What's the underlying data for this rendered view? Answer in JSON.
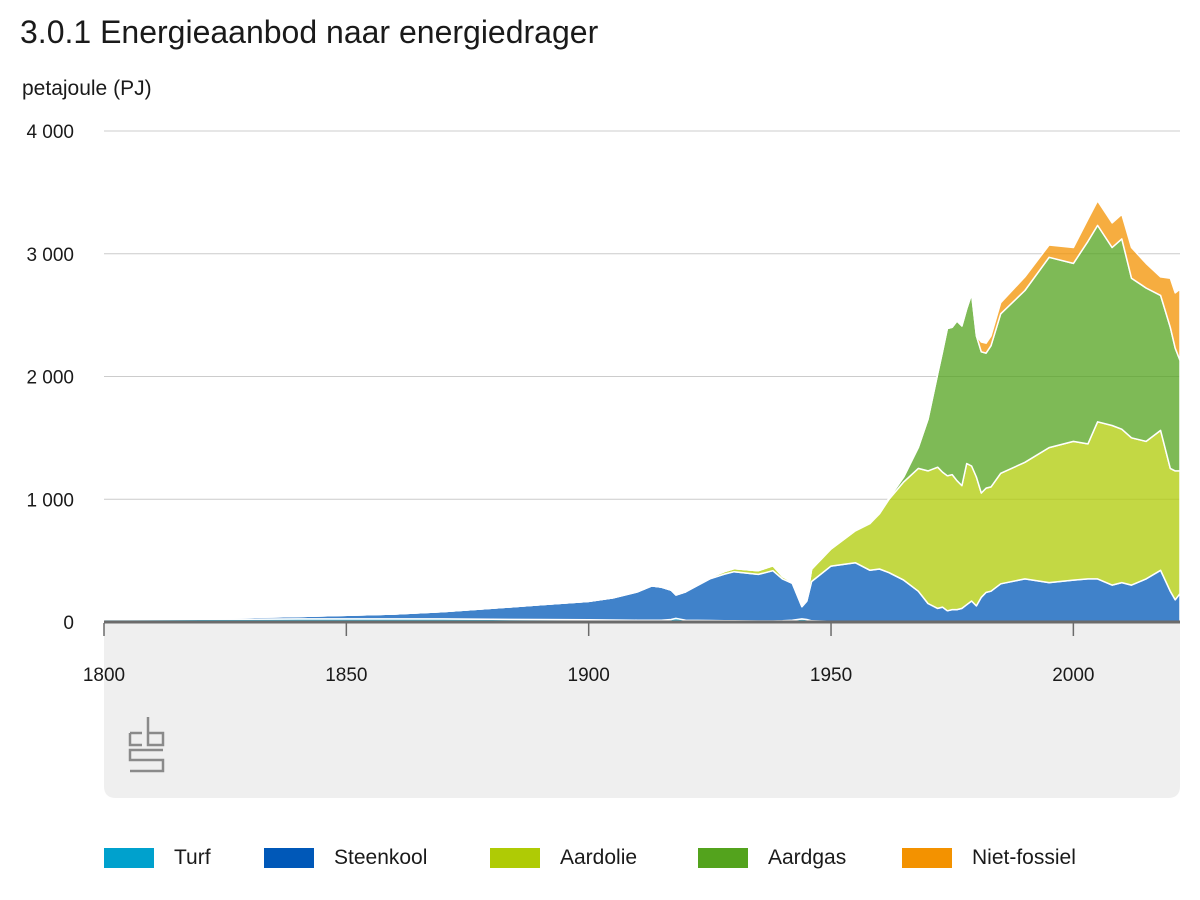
{
  "title": "3.0.1 Energieaanbod naar energiedrager",
  "unit_label": "petajoule (PJ)",
  "chart_data": {
    "type": "area",
    "stacked": true,
    "title": "3.0.1 Energieaanbod naar energiedrager",
    "ylabel": "petajoule (PJ)",
    "xlabel": "",
    "xlim": [
      1800,
      2022
    ],
    "ylim": [
      0,
      4000
    ],
    "x_ticks": [
      "1800",
      "1850",
      "1900",
      "1950",
      "2000"
    ],
    "y_ticks": [
      "0",
      "1 000",
      "2 000",
      "3 000",
      "4 000"
    ],
    "grid": true,
    "legend_position": "bottom",
    "x": [
      1800,
      1820,
      1840,
      1860,
      1870,
      1880,
      1890,
      1900,
      1905,
      1910,
      1913,
      1915,
      1917,
      1918,
      1920,
      1925,
      1928,
      1930,
      1935,
      1938,
      1940,
      1942,
      1944,
      1945,
      1946,
      1950,
      1955,
      1958,
      1960,
      1962,
      1965,
      1968,
      1970,
      1972,
      1973,
      1974,
      1975,
      1976,
      1977,
      1978,
      1979,
      1980,
      1981,
      1982,
      1983,
      1985,
      1990,
      1995,
      2000,
      2003,
      2005,
      2008,
      2010,
      2012,
      2015,
      2018,
      2020,
      2021,
      2022
    ],
    "series": [
      {
        "name": "Turf",
        "color": "#00a1cd",
        "values": [
          20,
          22,
          25,
          25,
          25,
          22,
          20,
          18,
          16,
          15,
          14,
          14,
          20,
          30,
          15,
          12,
          10,
          10,
          8,
          8,
          10,
          15,
          25,
          20,
          10,
          5,
          3,
          2,
          2,
          2,
          1,
          1,
          1,
          1,
          1,
          1,
          1,
          1,
          1,
          1,
          1,
          1,
          1,
          1,
          1,
          1,
          1,
          1,
          1,
          1,
          1,
          1,
          1,
          1,
          1,
          1,
          1,
          1,
          1
        ]
      },
      {
        "name": "Steenkool",
        "color": "#0058b8",
        "values": [
          5,
          10,
          20,
          40,
          60,
          90,
          120,
          150,
          180,
          230,
          280,
          270,
          240,
          190,
          230,
          340,
          380,
          400,
          380,
          410,
          340,
          300,
          100,
          150,
          320,
          450,
          480,
          420,
          430,
          400,
          340,
          250,
          150,
          110,
          120,
          90,
          100,
          100,
          110,
          140,
          170,
          130,
          200,
          240,
          250,
          310,
          350,
          320,
          340,
          350,
          350,
          300,
          320,
          300,
          350,
          420,
          250,
          180,
          230
        ]
      },
      {
        "name": "Aardolie",
        "color": "#afcb05",
        "values": [
          0,
          0,
          0,
          0,
          0,
          0,
          0,
          0,
          0,
          0,
          0,
          0,
          0,
          0,
          0,
          10,
          20,
          25,
          30,
          40,
          20,
          10,
          10,
          15,
          100,
          140,
          260,
          380,
          450,
          600,
          800,
          1000,
          1080,
          1150,
          1100,
          1100,
          1100,
          1050,
          1000,
          1150,
          1100,
          1050,
          850,
          850,
          850,
          900,
          950,
          1100,
          1130,
          1100,
          1280,
          1300,
          1250,
          1200,
          1120,
          1140,
          1000,
          1050,
          1000
        ]
      },
      {
        "name": "Aardgas",
        "color": "#53a31d",
        "values": [
          0,
          0,
          0,
          0,
          0,
          0,
          0,
          0,
          0,
          0,
          0,
          0,
          0,
          0,
          0,
          0,
          0,
          0,
          0,
          0,
          0,
          0,
          0,
          0,
          0,
          0,
          0,
          0,
          5,
          10,
          40,
          170,
          420,
          760,
          980,
          1200,
          1200,
          1300,
          1300,
          1260,
          1400,
          1150,
          1150,
          1100,
          1150,
          1300,
          1400,
          1550,
          1450,
          1650,
          1600,
          1450,
          1550,
          1300,
          1250,
          1100,
          1150,
          1000,
          900
        ]
      },
      {
        "name": "Niet-fossiel",
        "color": "#f39200",
        "values": [
          0,
          0,
          0,
          0,
          0,
          0,
          0,
          0,
          0,
          0,
          0,
          0,
          0,
          0,
          0,
          0,
          0,
          0,
          0,
          0,
          0,
          0,
          0,
          0,
          0,
          0,
          0,
          0,
          0,
          0,
          0,
          0,
          0,
          0,
          0,
          0,
          0,
          0,
          0,
          0,
          0,
          0,
          80,
          80,
          80,
          90,
          110,
          100,
          130,
          180,
          200,
          200,
          200,
          250,
          200,
          150,
          400,
          450,
          580
        ]
      }
    ]
  }
}
